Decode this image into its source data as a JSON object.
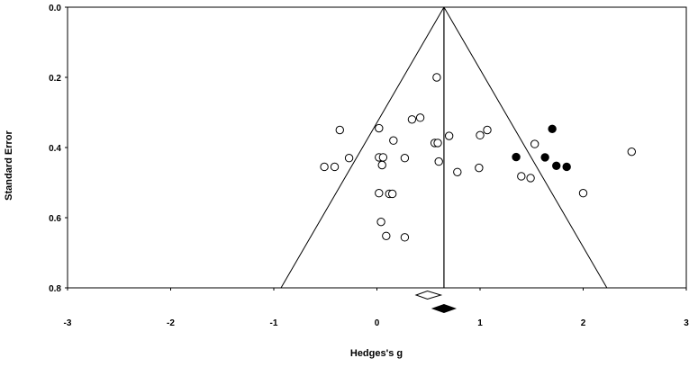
{
  "chart_data": {
    "type": "scatter",
    "title": "",
    "xlabel": "Hedges's g",
    "ylabel": "Standard Error",
    "xlim": [
      -3,
      3
    ],
    "ylim": [
      0.0,
      0.8
    ],
    "y_inverted": true,
    "grid": false,
    "legend": "none",
    "xticks": [
      -3,
      -2,
      -1,
      0,
      1,
      2,
      3
    ],
    "xtick_labels": [
      "-3",
      "-2",
      "-1",
      "0",
      "1",
      "2",
      "3"
    ],
    "yticks": [
      0.0,
      0.2,
      0.4,
      0.6,
      0.8
    ],
    "ytick_labels": [
      "0.0",
      "0.2",
      "0.4",
      "0.6",
      "0.8"
    ],
    "pooled_effect": 0.65,
    "funnel": {
      "apex": [
        0.65,
        0.0
      ],
      "bottom_left": [
        -0.93,
        0.8
      ],
      "bottom_right": [
        2.23,
        0.8
      ]
    },
    "diamonds": [
      {
        "kind": "observed",
        "fill": "open",
        "center": 0.49,
        "lower": 0.38,
        "upper": 0.62
      },
      {
        "kind": "adjusted",
        "fill": "filled",
        "center": 0.65,
        "lower": 0.54,
        "upper": 0.76
      }
    ],
    "series": [
      {
        "kind": "observed",
        "fill": "open",
        "points": [
          {
            "x": 0.58,
            "y": 0.2
          },
          {
            "x": -0.36,
            "y": 0.35
          },
          {
            "x": 0.02,
            "y": 0.345
          },
          {
            "x": 0.42,
            "y": 0.315
          },
          {
            "x": 0.34,
            "y": 0.32
          },
          {
            "x": 1.07,
            "y": 0.35
          },
          {
            "x": 1.0,
            "y": 0.365
          },
          {
            "x": 0.7,
            "y": 0.367
          },
          {
            "x": 0.16,
            "y": 0.38
          },
          {
            "x": 0.56,
            "y": 0.387
          },
          {
            "x": 0.59,
            "y": 0.387
          },
          {
            "x": 1.53,
            "y": 0.39
          },
          {
            "x": 2.47,
            "y": 0.412
          },
          {
            "x": -0.27,
            "y": 0.43
          },
          {
            "x": 0.02,
            "y": 0.428
          },
          {
            "x": 0.06,
            "y": 0.428
          },
          {
            "x": 0.27,
            "y": 0.43
          },
          {
            "x": 0.6,
            "y": 0.44
          },
          {
            "x": 0.05,
            "y": 0.45
          },
          {
            "x": -0.51,
            "y": 0.455
          },
          {
            "x": -0.41,
            "y": 0.455
          },
          {
            "x": 0.99,
            "y": 0.458
          },
          {
            "x": 0.78,
            "y": 0.47
          },
          {
            "x": 1.4,
            "y": 0.482
          },
          {
            "x": 1.49,
            "y": 0.487
          },
          {
            "x": 0.02,
            "y": 0.53
          },
          {
            "x": 0.12,
            "y": 0.532
          },
          {
            "x": 0.15,
            "y": 0.532
          },
          {
            "x": 2.0,
            "y": 0.53
          },
          {
            "x": 0.04,
            "y": 0.612
          },
          {
            "x": 0.09,
            "y": 0.652
          },
          {
            "x": 0.27,
            "y": 0.656
          }
        ]
      },
      {
        "kind": "imputed",
        "fill": "filled",
        "points": [
          {
            "x": 1.7,
            "y": 0.347
          },
          {
            "x": 1.35,
            "y": 0.427
          },
          {
            "x": 1.63,
            "y": 0.428
          },
          {
            "x": 1.74,
            "y": 0.452
          },
          {
            "x": 1.84,
            "y": 0.455
          }
        ]
      }
    ]
  }
}
